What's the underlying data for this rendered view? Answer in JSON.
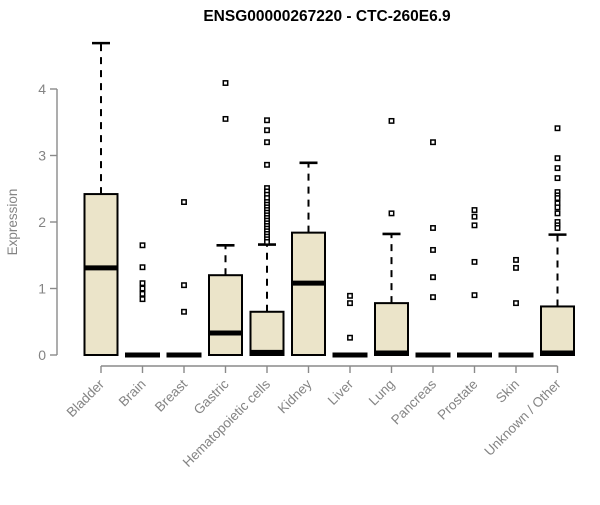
{
  "title": "ENSG00000267220 - CTC-260E6.9",
  "chart_data": {
    "type": "boxplot",
    "title": "ENSG00000267220 - CTC-260E6.9",
    "xlabel": "",
    "ylabel": "Expression",
    "ylim": [
      0,
      4.7
    ],
    "yticks": [
      0,
      1,
      2,
      3,
      4
    ],
    "grid": false,
    "legend": false,
    "colors": {
      "box_fill": "#EBE4C9",
      "box_border": "#000000",
      "median": "#000000",
      "whisker": "#000000",
      "outlier_stroke": "#000000",
      "axis": "#8A8A8A",
      "tick_text": "#848484",
      "title_text": "#000000",
      "background": "#FFFFFF"
    },
    "categories": [
      "Bladder",
      "Brain",
      "Breast",
      "Gastric",
      "Hematopoietic cells",
      "Kidney",
      "Liver",
      "Lung",
      "Pancreas",
      "Prostate",
      "Skin",
      "Unknown / Other"
    ],
    "series": [
      {
        "category": "Bladder",
        "whisker_low": 0,
        "q1": 0,
        "median": 1.31,
        "q3": 2.42,
        "whisker_high": 4.69,
        "outliers": []
      },
      {
        "category": "Brain",
        "whisker_low": 0,
        "q1": 0,
        "median": 0,
        "q3": 0.02,
        "whisker_high": 0.02,
        "outliers": [
          1.65,
          1.32,
          1.08,
          1.0,
          0.92,
          0.84
        ]
      },
      {
        "category": "Breast",
        "whisker_low": 0,
        "q1": 0,
        "median": 0,
        "q3": 0.02,
        "whisker_high": 0.02,
        "outliers": [
          2.3,
          1.05,
          0.65
        ]
      },
      {
        "category": "Gastric",
        "whisker_low": 0,
        "q1": 0,
        "median": 0.33,
        "q3": 1.2,
        "whisker_high": 1.65,
        "outliers": [
          4.09,
          3.55
        ]
      },
      {
        "category": "Hematopoietic cells",
        "whisker_low": 0,
        "q1": 0,
        "median": 0.04,
        "q3": 0.65,
        "whisker_high": 1.66,
        "outliers": [
          3.53,
          3.38,
          3.2,
          2.86,
          2.51,
          2.46,
          2.41,
          2.36,
          2.3,
          2.26,
          2.22,
          2.18,
          2.14,
          2.1,
          2.06,
          2.02,
          1.98,
          1.94,
          1.9,
          1.86,
          1.82,
          1.78,
          1.74,
          1.7
        ]
      },
      {
        "category": "Kidney",
        "whisker_low": 0,
        "q1": 0,
        "median": 1.08,
        "q3": 1.84,
        "whisker_high": 2.89,
        "outliers": []
      },
      {
        "category": "Liver",
        "whisker_low": 0,
        "q1": 0,
        "median": 0,
        "q3": 0.02,
        "whisker_high": 0.02,
        "outliers": [
          0.89,
          0.78,
          0.26
        ]
      },
      {
        "category": "Lung",
        "whisker_low": 0,
        "q1": 0,
        "median": 0.03,
        "q3": 0.78,
        "whisker_high": 1.82,
        "outliers": [
          3.52,
          2.13
        ]
      },
      {
        "category": "Pancreas",
        "whisker_low": 0,
        "q1": 0,
        "median": 0,
        "q3": 0.02,
        "whisker_high": 0.02,
        "outliers": [
          3.2,
          1.91,
          1.58,
          1.17,
          0.87
        ]
      },
      {
        "category": "Prostate",
        "whisker_low": 0,
        "q1": 0,
        "median": 0,
        "q3": 0.02,
        "whisker_high": 0.02,
        "outliers": [
          2.18,
          2.08,
          1.95,
          1.4,
          0.9
        ]
      },
      {
        "category": "Skin",
        "whisker_low": 0,
        "q1": 0,
        "median": 0,
        "q3": 0.02,
        "whisker_high": 0.02,
        "outliers": [
          1.43,
          1.31,
          0.78
        ]
      },
      {
        "category": "Unknown / Other",
        "whisker_low": 0,
        "q1": 0,
        "median": 0.03,
        "q3": 0.73,
        "whisker_high": 1.81,
        "outliers": [
          3.41,
          2.96,
          2.81,
          2.66,
          2.45,
          2.4,
          2.36,
          2.28,
          2.22,
          2.13,
          2.0,
          1.95,
          1.91
        ]
      }
    ]
  }
}
